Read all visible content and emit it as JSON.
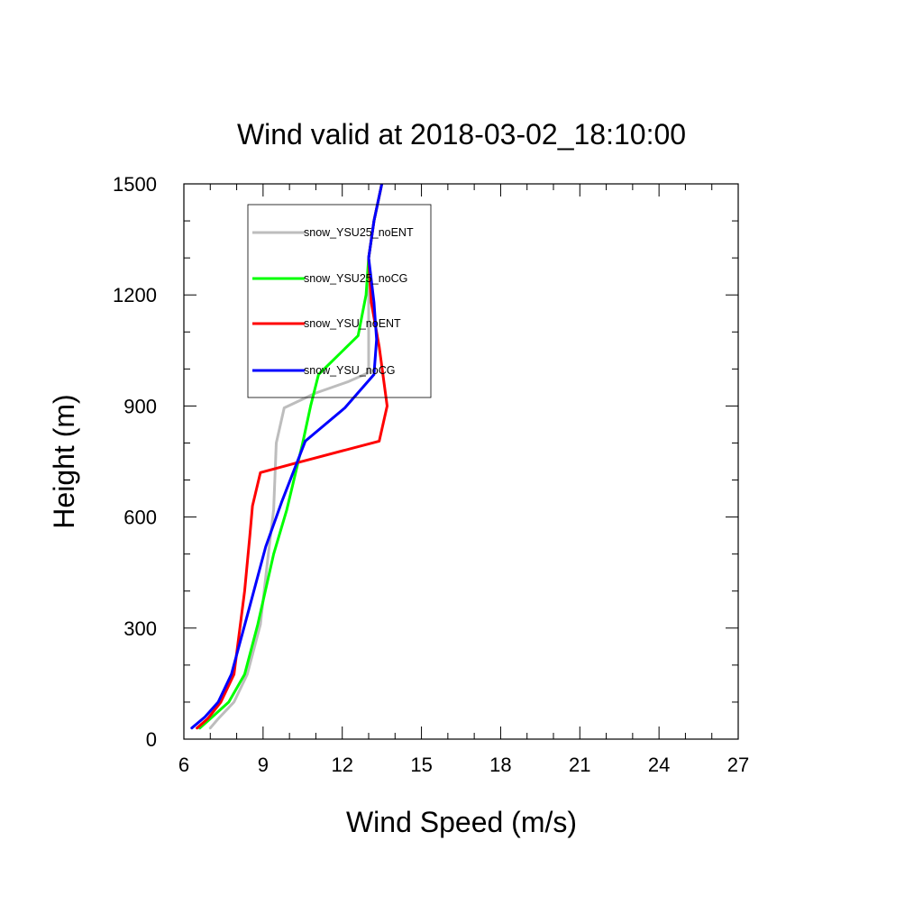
{
  "chart_data": {
    "type": "line",
    "title": "Wind valid at 2018-03-02_18:10:00",
    "xlabel": "Wind Speed (m/s)",
    "ylabel": "Height (m)",
    "xlim": [
      6,
      27
    ],
    "ylim": [
      0,
      1500
    ],
    "xticks": [
      6,
      9,
      12,
      15,
      18,
      21,
      24,
      27
    ],
    "yticks": [
      0,
      300,
      600,
      900,
      1200,
      1500
    ],
    "x_minor_step": 1,
    "y_minor_step": 100,
    "grid": false,
    "legend_position": "top-left inside plot",
    "series": [
      {
        "name": "snow_YSU25_noENT",
        "color": "#bdbdbd",
        "points": [
          [
            7.0,
            30
          ],
          [
            7.3,
            55
          ],
          [
            7.9,
            100
          ],
          [
            8.4,
            175
          ],
          [
            8.9,
            310
          ],
          [
            9.2,
            500
          ],
          [
            9.4,
            620
          ],
          [
            9.5,
            800
          ],
          [
            9.8,
            895
          ],
          [
            11.0,
            935
          ],
          [
            12.2,
            965
          ],
          [
            13.0,
            990
          ],
          [
            13.0,
            1050
          ],
          [
            13.0,
            1180
          ],
          [
            13.0,
            1300
          ],
          [
            13.2,
            1400
          ],
          [
            13.5,
            1500
          ]
        ]
      },
      {
        "name": "snow_YSU25_noCG",
        "color": "#00ff00",
        "points": [
          [
            6.6,
            30
          ],
          [
            7.0,
            55
          ],
          [
            7.7,
            100
          ],
          [
            8.3,
            175
          ],
          [
            8.8,
            310
          ],
          [
            9.4,
            500
          ],
          [
            9.9,
            620
          ],
          [
            10.5,
            800
          ],
          [
            10.8,
            900
          ],
          [
            11.1,
            985
          ],
          [
            12.6,
            1090
          ],
          [
            12.9,
            1200
          ],
          [
            13.0,
            1300
          ],
          [
            13.2,
            1400
          ],
          [
            13.5,
            1500
          ]
        ]
      },
      {
        "name": "snow_YSU_noENT",
        "color": "#ff0000",
        "points": [
          [
            6.5,
            30
          ],
          [
            6.9,
            55
          ],
          [
            7.4,
            100
          ],
          [
            7.9,
            175
          ],
          [
            8.3,
            400
          ],
          [
            8.5,
            550
          ],
          [
            8.6,
            630
          ],
          [
            8.9,
            720
          ],
          [
            10.2,
            745
          ],
          [
            13.4,
            805
          ],
          [
            13.7,
            900
          ],
          [
            13.4,
            1060
          ],
          [
            13.1,
            1180
          ],
          [
            13.0,
            1300
          ],
          [
            13.2,
            1400
          ],
          [
            13.5,
            1500
          ]
        ]
      },
      {
        "name": "snow_YSU_noCG",
        "color": "#0000ff",
        "points": [
          [
            6.3,
            30
          ],
          [
            6.8,
            60
          ],
          [
            7.3,
            100
          ],
          [
            7.8,
            175
          ],
          [
            8.5,
            360
          ],
          [
            9.1,
            520
          ],
          [
            9.7,
            640
          ],
          [
            10.6,
            805
          ],
          [
            12.1,
            895
          ],
          [
            13.2,
            985
          ],
          [
            13.3,
            1080
          ],
          [
            13.2,
            1180
          ],
          [
            13.0,
            1300
          ],
          [
            13.2,
            1400
          ],
          [
            13.5,
            1500
          ]
        ]
      }
    ]
  }
}
